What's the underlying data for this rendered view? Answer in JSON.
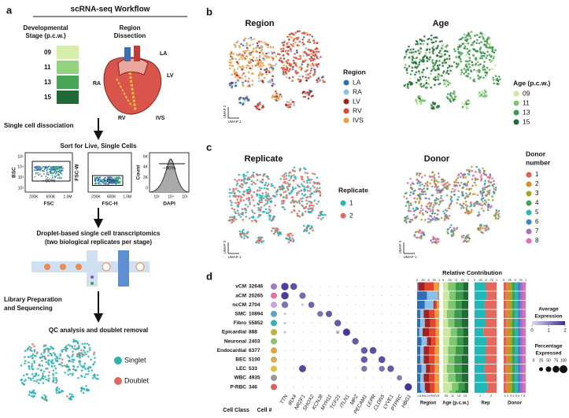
{
  "panel_a": {
    "label": "a",
    "title": "scRNA-seq Workflow",
    "stage_title": [
      "Developmental",
      "Stage (p.c.w.)"
    ],
    "stages": [
      "09",
      "11",
      "13",
      "15"
    ],
    "stage_colors": [
      "#d5eea9",
      "#93d27f",
      "#45a754",
      "#1f6a35"
    ],
    "region_title": [
      "Region",
      "Dissection"
    ],
    "heart_labels": [
      "LA",
      "LV",
      "RA",
      "RV",
      "IVS"
    ],
    "step1": "Single cell dissociation",
    "sort_title": "Sort for Live, Single Cells",
    "facs": [
      {
        "y_label": "BSC",
        "x_label": "FSC",
        "gate": "~90%",
        "y_ticks": [
          "10⁵",
          "10⁴",
          "10³",
          "10²"
        ],
        "x_ticks": [
          "200K",
          "600K",
          "1.0M"
        ]
      },
      {
        "y_label": "FSC-W",
        "x_label": "FSC-H",
        "gate": "~75%",
        "x_ticks": [
          "200K",
          "600K",
          "1.0M"
        ]
      },
      {
        "y_label": "Count",
        "x_label": "DAPI",
        "gate": "~90%",
        "y_ticks": [
          "6K",
          "4K",
          "2K",
          "0"
        ],
        "x_ticks": [
          "10²",
          "10⁴",
          "10⁶"
        ]
      }
    ],
    "step2": [
      "Droplet-based single cell transcriptomics",
      "(two biological replicates per stage)"
    ],
    "step3": [
      "Library Preparation",
      "and Sequencing"
    ],
    "step4": "QC analysis and doublet removal",
    "qc_legend": [
      "Singlet",
      "Doublet"
    ],
    "qc_colors": [
      "#2bb3b1",
      "#e8675c"
    ]
  },
  "panel_b": {
    "label": "b",
    "umap_x": "UMAP 1",
    "umap_y": "UMAP 2",
    "region": {
      "title": "Region",
      "legend_title": "Region",
      "entries": [
        "LA",
        "RA",
        "LV",
        "RV",
        "IVS"
      ],
      "colors": [
        "#2f6db5",
        "#8cc0e6",
        "#a3201f",
        "#e2452b",
        "#f39b3c"
      ]
    },
    "age": {
      "title": "Age",
      "legend_title": "Age (p.c.w.)",
      "entries": [
        "09",
        "11",
        "13",
        "15"
      ],
      "colors": [
        "#c9e8a0",
        "#7fc76f",
        "#3a9a4a",
        "#1f6a35"
      ]
    }
  },
  "panel_c": {
    "label": "c",
    "umap_x": "UMAP 1",
    "umap_y": "UMAP 2",
    "replicate": {
      "title": "Replicate",
      "legend_title": "Replicate",
      "entries": [
        "1",
        "2"
      ],
      "colors": [
        "#1fb8b8",
        "#e8675c"
      ]
    },
    "donor": {
      "title": "Donor",
      "legend_title": [
        "Donor",
        "number"
      ],
      "entries": [
        "1",
        "2",
        "3",
        "4",
        "5",
        "6",
        "7",
        "8"
      ],
      "colors": [
        "#e85a5a",
        "#d98a2b",
        "#a8a22a",
        "#3aa548",
        "#2bb5b0",
        "#3a86c8",
        "#b068c0",
        "#e86ab0"
      ]
    }
  },
  "panel_d": {
    "label": "d",
    "row_header": "Cell Class",
    "count_header": "Cell #",
    "classes": [
      "vCM",
      "aCM",
      "ncCM",
      "SMC",
      "Fibro",
      "Epicardial",
      "Neuronal",
      "Endocardial",
      "BEC",
      "LEC",
      "WBC",
      "P-RBC"
    ],
    "class_counts": [
      32646,
      20265,
      2704,
      10894,
      55852,
      888,
      2403,
      6377,
      5100,
      533,
      4935,
      346
    ],
    "class_colors": [
      "#9b7fc4",
      "#e96fa5",
      "#c7a6de",
      "#5aa6c8",
      "#2bb7b0",
      "#b7b63a",
      "#8fc26b",
      "#e8a23a",
      "#d4b25a",
      "#e2c23a",
      "#9a9a9a",
      "#e06060"
    ],
    "genes": [
      "TTN",
      "IRX4",
      "NR2F1",
      "SHOX2",
      "KCNJ8",
      "MYH11",
      "TCF21",
      "ITLN1",
      "MPZ",
      "PECAM1",
      "LEPR",
      "CLDN5",
      "LYVE1",
      "PTPRC",
      "HBG1"
    ],
    "pct": [
      [
        90,
        75,
        3,
        3,
        3,
        3,
        3,
        3,
        3,
        3,
        3,
        3,
        3,
        3,
        3
      ],
      [
        90,
        3,
        65,
        3,
        3,
        3,
        3,
        3,
        3,
        3,
        3,
        3,
        3,
        3,
        3
      ],
      [
        70,
        3,
        10,
        60,
        3,
        3,
        3,
        3,
        3,
        3,
        3,
        3,
        3,
        3,
        3
      ],
      [
        10,
        3,
        3,
        3,
        55,
        65,
        3,
        3,
        3,
        3,
        3,
        3,
        3,
        3,
        3
      ],
      [
        10,
        3,
        3,
        3,
        3,
        3,
        70,
        3,
        3,
        3,
        3,
        3,
        3,
        3,
        3
      ],
      [
        10,
        3,
        3,
        3,
        3,
        3,
        20,
        85,
        3,
        3,
        3,
        3,
        3,
        3,
        3
      ],
      [
        3,
        3,
        3,
        3,
        3,
        3,
        3,
        3,
        70,
        3,
        3,
        3,
        3,
        3,
        3
      ],
      [
        3,
        3,
        3,
        3,
        3,
        3,
        3,
        3,
        3,
        70,
        75,
        3,
        3,
        3,
        3
      ],
      [
        3,
        3,
        3,
        3,
        3,
        3,
        3,
        3,
        3,
        70,
        3,
        75,
        3,
        3,
        3
      ],
      [
        3,
        3,
        80,
        3,
        3,
        3,
        3,
        3,
        3,
        55,
        3,
        55,
        70,
        3,
        3
      ],
      [
        3,
        3,
        3,
        3,
        3,
        3,
        3,
        3,
        3,
        3,
        3,
        3,
        3,
        45,
        3
      ],
      [
        3,
        3,
        3,
        3,
        3,
        3,
        3,
        3,
        3,
        3,
        3,
        3,
        3,
        3,
        85
      ]
    ],
    "expr": [
      [
        1.8,
        1.6,
        0,
        0,
        0,
        0,
        0,
        0,
        0,
        0,
        0,
        0,
        0,
        0,
        0
      ],
      [
        1.8,
        0,
        1.3,
        0,
        0,
        0,
        0,
        0,
        0,
        0,
        0,
        0,
        0,
        0,
        0
      ],
      [
        1.2,
        0,
        0.3,
        1.4,
        0,
        0,
        0,
        0,
        0,
        0,
        0,
        0,
        0,
        0,
        0
      ],
      [
        0.3,
        0,
        0,
        0,
        1.2,
        1.5,
        0,
        0,
        0,
        0,
        0,
        0,
        0,
        0,
        0
      ],
      [
        0.3,
        0,
        0,
        0,
        0,
        0,
        1.5,
        0,
        0,
        0,
        0,
        0,
        0,
        0,
        0
      ],
      [
        0.3,
        0,
        0,
        0,
        0,
        0,
        0.5,
        1.9,
        0,
        0,
        0,
        0,
        0,
        0,
        0
      ],
      [
        0,
        0,
        0,
        0,
        0,
        0,
        0,
        0,
        1.5,
        0,
        0,
        0,
        0,
        0,
        0
      ],
      [
        0,
        0,
        0,
        0,
        0,
        0,
        0,
        0,
        0,
        1.5,
        1.6,
        0,
        0,
        0,
        0
      ],
      [
        0,
        0,
        0,
        0,
        0,
        0,
        0,
        0,
        0,
        1.5,
        0,
        1.6,
        0,
        0,
        0
      ],
      [
        0,
        0,
        1.7,
        0,
        0,
        0,
        0,
        0,
        0,
        1.2,
        0,
        1.2,
        1.5,
        0,
        0
      ],
      [
        0,
        0,
        0,
        0,
        0,
        0,
        0,
        0,
        0,
        0,
        0,
        0,
        0,
        1.1,
        0
      ],
      [
        0,
        0,
        0,
        0,
        0,
        0,
        0,
        0,
        0,
        0,
        0,
        0,
        0,
        0,
        1.9
      ]
    ],
    "contribution_title": "Relative Contribution",
    "contribution_ticks": [
      0,
      {
        "value": 0.25,
        "label": ".25"
      },
      {
        "value": 0.5,
        "label": ".5"
      },
      {
        "value": 0.75,
        "label": ".75"
      },
      1
    ],
    "groups": [
      {
        "title": "Region",
        "entries": [
          "LA",
          "RA",
          "LV",
          "RV",
          "IVS"
        ],
        "colors": [
          "#2f6db5",
          "#8cc0e6",
          "#a3201f",
          "#e2452b",
          "#f39b3c"
        ],
        "shares": [
          [
            0.02,
            0.03,
            0.3,
            0.4,
            0.25
          ],
          [
            0.45,
            0.5,
            0.01,
            0.02,
            0.02
          ],
          [
            0.35,
            0.4,
            0.05,
            0.1,
            0.1
          ],
          [
            0.15,
            0.15,
            0.25,
            0.25,
            0.2
          ],
          [
            0.15,
            0.2,
            0.25,
            0.25,
            0.15
          ],
          [
            0.1,
            0.15,
            0.3,
            0.3,
            0.15
          ],
          [
            0.2,
            0.25,
            0.2,
            0.2,
            0.15
          ],
          [
            0.15,
            0.15,
            0.25,
            0.25,
            0.2
          ],
          [
            0.15,
            0.15,
            0.25,
            0.25,
            0.2
          ],
          [
            0.2,
            0.2,
            0.2,
            0.2,
            0.2
          ],
          [
            0.15,
            0.15,
            0.25,
            0.25,
            0.2
          ],
          [
            0.15,
            0.2,
            0.25,
            0.2,
            0.2
          ]
        ]
      },
      {
        "title": "Age (p.c.w.)",
        "entries": [
          "09",
          "11",
          "13",
          "15"
        ],
        "colors": [
          "#c9e8a0",
          "#7fc76f",
          "#3a9a4a",
          "#1f6a35"
        ],
        "shares": [
          [
            0.2,
            0.3,
            0.3,
            0.2
          ],
          [
            0.25,
            0.25,
            0.3,
            0.2
          ],
          [
            0.2,
            0.3,
            0.25,
            0.25
          ],
          [
            0.15,
            0.3,
            0.3,
            0.25
          ],
          [
            0.2,
            0.25,
            0.3,
            0.25
          ],
          [
            0.3,
            0.25,
            0.25,
            0.2
          ],
          [
            0.25,
            0.3,
            0.25,
            0.2
          ],
          [
            0.2,
            0.3,
            0.3,
            0.2
          ],
          [
            0.2,
            0.25,
            0.3,
            0.25
          ],
          [
            0.15,
            0.3,
            0.3,
            0.25
          ],
          [
            0.2,
            0.3,
            0.25,
            0.25
          ],
          [
            0.35,
            0.25,
            0.25,
            0.15
          ]
        ]
      },
      {
        "title": "Rep",
        "entries": [
          "1",
          "2"
        ],
        "colors": [
          "#1fb8b8",
          "#e8675c"
        ],
        "shares": [
          [
            0.5,
            0.5
          ],
          [
            0.55,
            0.45
          ],
          [
            0.45,
            0.55
          ],
          [
            0.5,
            0.5
          ],
          [
            0.5,
            0.5
          ],
          [
            0.4,
            0.6
          ],
          [
            0.55,
            0.45
          ],
          [
            0.5,
            0.5
          ],
          [
            0.5,
            0.5
          ],
          [
            0.45,
            0.55
          ],
          [
            0.5,
            0.5
          ],
          [
            0.6,
            0.4
          ]
        ]
      },
      {
        "title": "Donor",
        "entries": [
          "1",
          "2",
          "3",
          "4",
          "5",
          "6",
          "7",
          "8"
        ],
        "colors": [
          "#e85a5a",
          "#d98a2b",
          "#a8a22a",
          "#3aa548",
          "#2bb5b0",
          "#3a86c8",
          "#b068c0",
          "#e86ab0"
        ],
        "shares": [
          [
            0.12,
            0.13,
            0.12,
            0.13,
            0.12,
            0.13,
            0.12,
            0.13
          ],
          [
            0.1,
            0.15,
            0.13,
            0.12,
            0.14,
            0.11,
            0.13,
            0.12
          ],
          [
            0.12,
            0.13,
            0.12,
            0.13,
            0.12,
            0.13,
            0.12,
            0.13
          ],
          [
            0.1,
            0.15,
            0.13,
            0.12,
            0.14,
            0.11,
            0.13,
            0.12
          ],
          [
            0.12,
            0.13,
            0.12,
            0.13,
            0.12,
            0.13,
            0.12,
            0.13
          ],
          [
            0.1,
            0.15,
            0.13,
            0.12,
            0.14,
            0.11,
            0.13,
            0.12
          ],
          [
            0.12,
            0.13,
            0.12,
            0.13,
            0.12,
            0.13,
            0.12,
            0.13
          ],
          [
            0.1,
            0.15,
            0.13,
            0.12,
            0.14,
            0.11,
            0.13,
            0.12
          ],
          [
            0.12,
            0.13,
            0.12,
            0.13,
            0.12,
            0.13,
            0.12,
            0.13
          ],
          [
            0.1,
            0.15,
            0.13,
            0.12,
            0.14,
            0.11,
            0.13,
            0.12
          ],
          [
            0.12,
            0.13,
            0.12,
            0.13,
            0.12,
            0.13,
            0.12,
            0.13
          ],
          [
            0.1,
            0.15,
            0.13,
            0.12,
            0.14,
            0.11,
            0.13,
            0.12
          ]
        ]
      }
    ],
    "expr_legend": {
      "title": [
        "Average",
        "Expression"
      ],
      "ticks": [
        0,
        1,
        2
      ]
    },
    "pct_legend": {
      "title": [
        "Percentage",
        "Expressed"
      ],
      "ticks": [
        0,
        25,
        50,
        75,
        100
      ]
    }
  }
}
